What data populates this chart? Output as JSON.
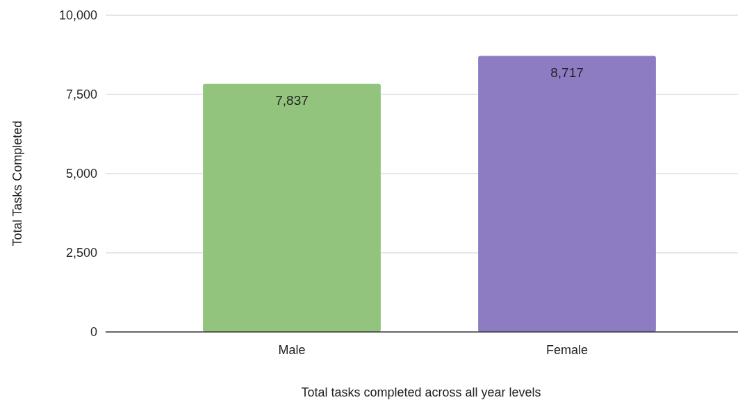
{
  "chart_data": {
    "type": "bar",
    "xlabel": "Total tasks completed across all year levels",
    "ylabel": "Total Tasks Completed",
    "categories": [
      "Male",
      "Female"
    ],
    "values": [
      7837,
      8717
    ],
    "colors": [
      "#93c47d",
      "#8e7cc3"
    ],
    "ylim": [
      0,
      10000
    ],
    "yticks": [
      {
        "value": 0,
        "label": "0"
      },
      {
        "value": 2500,
        "label": "2,500"
      },
      {
        "value": 5000,
        "label": "5,000"
      },
      {
        "value": 7500,
        "label": "7,500"
      },
      {
        "value": 10000,
        "label": "10,000"
      }
    ],
    "value_labels": [
      "7,837",
      "8,717"
    ],
    "grid": "y"
  }
}
